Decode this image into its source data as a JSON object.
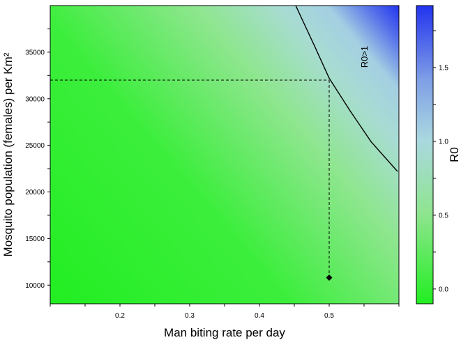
{
  "chart_data": {
    "type": "heatmap",
    "xlabel": "Man biting rate per day",
    "ylabel": "Mosquito population (females) per Km²",
    "xlim": [
      0.1,
      0.6
    ],
    "ylim": [
      8000,
      40000
    ],
    "x_ticks": [
      0.2,
      0.3,
      0.4,
      0.5
    ],
    "x_tick_labels": [
      "0.2",
      "0.3",
      "0.4",
      "0.5"
    ],
    "y_ticks": [
      10000,
      15000,
      20000,
      25000,
      30000,
      35000
    ],
    "y_tick_labels": [
      "10000",
      "15000",
      "20000",
      "25000",
      "30000",
      "35000"
    ],
    "colorbar": {
      "label": "R0",
      "range": [
        -0.1,
        1.92
      ],
      "ticks": [
        0.0,
        0.5,
        1.0,
        1.5
      ],
      "tick_labels": [
        "0.0",
        "0.5",
        "1.0",
        "1.5"
      ],
      "colors": [
        "#22ee22",
        "#8ee58e",
        "#aad8e0",
        "#2233ee"
      ]
    },
    "threshold_curve": {
      "label": "R0>1",
      "points": [
        {
          "x": 0.452,
          "y": 40000
        },
        {
          "x": 0.48,
          "y": 35500
        },
        {
          "x": 0.5,
          "y": 32200
        },
        {
          "x": 0.53,
          "y": 28700
        },
        {
          "x": 0.56,
          "y": 25400
        },
        {
          "x": 0.598,
          "y": 22200
        }
      ]
    },
    "reference_point": {
      "x": 0.5,
      "y": 10800
    },
    "reference_lines": {
      "x": 0.5,
      "y": 32000
    }
  }
}
